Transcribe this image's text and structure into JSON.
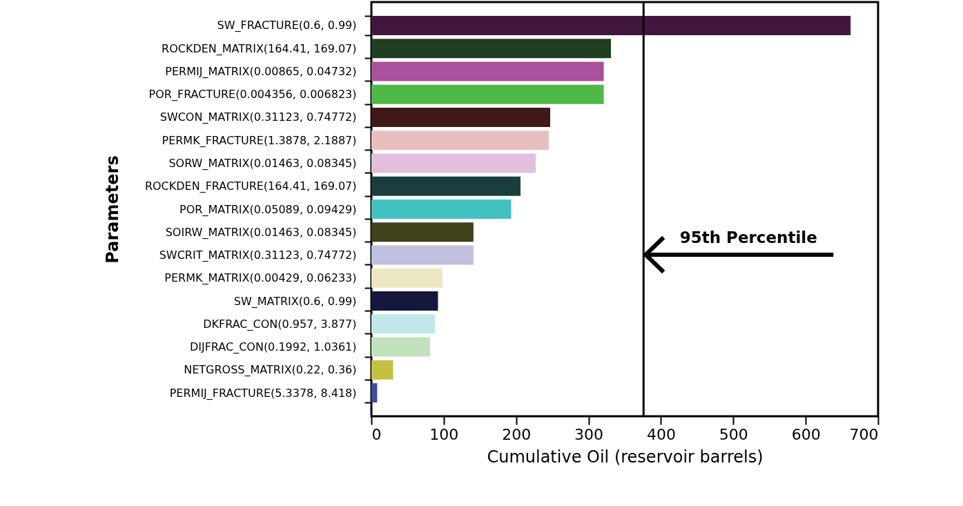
{
  "chart_data": {
    "type": "bar",
    "orientation": "horizontal",
    "xlabel": "Cumulative Oil (reservoir barrels)",
    "ylabel": "Parameters",
    "categories": [
      "SW_FRACTURE(0.6, 0.99)",
      "ROCKDEN_MATRIX(164.41, 169.07)",
      "PERMIJ_MATRIX(0.00865, 0.04732)",
      "POR_FRACTURE(0.004356, 0.006823)",
      "SWCON_MATRIX(0.31123, 0.74772)",
      "PERMK_FRACTURE(1.3878, 2.1887)",
      "SORW_MATRIX(0.01463, 0.08345)",
      "ROCKDEN_FRACTURE(164.41, 169.07)",
      "POR_MATRIX(0.05089, 0.09429)",
      "SOIRW_MATRIX(0.01463, 0.08345)",
      "SWCRIT_MATRIX(0.31123, 0.74772)",
      "PERMK_MATRIX(0.00429, 0.06233)",
      "SW_MATRIX(0.6, 0.99)",
      "DKFRAC_CON(0.957, 3.877)",
      "DIJFRAC_CON(0.1992, 1.0361)",
      "NETGROSS_MATRIX(0.22, 0.36)",
      "PERMIJ_FRACTURE(5.3378, 8.418)"
    ],
    "values": [
      662,
      331,
      321,
      321,
      247,
      245,
      227,
      206,
      193,
      141,
      141,
      98,
      92,
      88,
      81,
      30,
      8
    ],
    "colors": [
      "#41173f",
      "#203f20",
      "#a9519c",
      "#50b849",
      "#411717",
      "#e8bfbf",
      "#e2bfdc",
      "#1a3e40",
      "#42c1c2",
      "#40401c",
      "#bfbfdf",
      "#ebe8c1",
      "#16173f",
      "#c1e8e8",
      "#c2e2be",
      "#c2c03e",
      "#424b9f"
    ],
    "xlim": [
      0,
      700
    ],
    "xticks": [
      0,
      100,
      200,
      300,
      400,
      500,
      600,
      700
    ],
    "ref_lines": [
      {
        "axis": "x",
        "value": 376,
        "label": "95th Percentile",
        "color": "#000000"
      }
    ],
    "grid": false
  }
}
